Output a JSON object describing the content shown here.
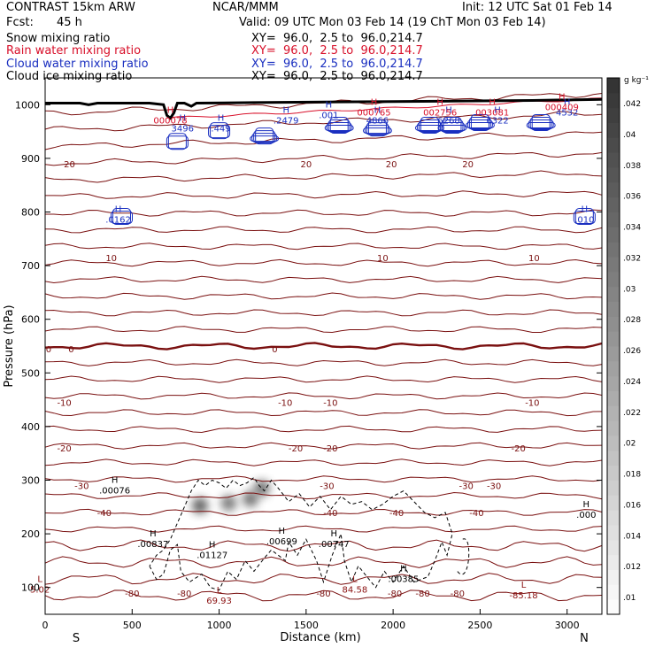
{
  "header": {
    "model": "CONTRAST 15km ARW",
    "org": "NCAR/MMM",
    "init": "Init: 12 UTC Sat 01 Feb 14",
    "fcst_label": "Fcst:",
    "fcst_value": "45 h",
    "valid": "Valid: 09 UTC Mon 03 Feb 14 (19 ChT Mon 03 Feb 14)",
    "fields": [
      {
        "label": "Snow mixing ratio",
        "xy": "XY=  96.0,  2.5 to  96.0,214.7",
        "color": "#000000"
      },
      {
        "label": "Rain water mixing ratio",
        "xy": "XY=  96.0,  2.5 to  96.0,214.7",
        "color": "#d8102a"
      },
      {
        "label": "Cloud water mixing ratio",
        "xy": "XY=  96.0,  2.5 to  96.0,214.7",
        "color": "#1a2fc0"
      },
      {
        "label": "Cloud ice mixing ratio",
        "xy": "XY=  96.0,  2.5 to  96.0,214.7",
        "color": "#000000"
      }
    ]
  },
  "chart_data": {
    "type": "cross-section",
    "xlabel": "Distance (km)",
    "ylabel": "Pressure (hPa)",
    "xlim": [
      0,
      3200
    ],
    "ylim": [
      1050,
      50
    ],
    "x_ticks": [
      0,
      500,
      1000,
      1500,
      2000,
      2500,
      3000
    ],
    "x_tick_labels": [
      "0",
      "500",
      "1000",
      "1500",
      "2000",
      "2500",
      "3000"
    ],
    "y_ticks": [
      100,
      200,
      300,
      400,
      500,
      600,
      700,
      800,
      900,
      1000
    ],
    "y_tick_labels": [
      "100",
      "200",
      "300",
      "400",
      "500",
      "600",
      "700",
      "800",
      "900",
      "1000"
    ],
    "end_labels": {
      "left": "S",
      "right": "N"
    },
    "colorbar": {
      "unit": "g kg⁻¹",
      "labels": [
        ".01",
        ".012",
        ".014",
        ".016",
        ".018",
        ".02",
        ".022",
        ".024",
        ".026",
        ".028",
        ".03",
        ".032",
        ".034",
        ".036",
        ".038",
        ".04",
        ".042"
      ]
    },
    "temperature_contours": [
      {
        "label": "-80",
        "p": 90,
        "label_x": [
          500,
          800,
          1600,
          2010,
          2170,
          2370
        ]
      },
      {
        "label": "-40",
        "p": 240,
        "label_x": [
          340,
          1640,
          2020,
          2480
        ]
      },
      {
        "label": "-30",
        "p": 290,
        "label_x": [
          210,
          1620,
          2420,
          2580
        ]
      },
      {
        "label": "-20",
        "p": 360,
        "label_x": [
          110,
          1440,
          1640,
          2720
        ]
      },
      {
        "label": "-10",
        "p": 445,
        "label_x": [
          110,
          1380,
          1640,
          2800
        ]
      },
      {
        "label": "0",
        "p": 545,
        "label_x": [
          20,
          150,
          1320
        ]
      },
      {
        "label": "10",
        "p": 715,
        "label_x": [
          380,
          1940,
          2810
        ]
      },
      {
        "label": "20",
        "p": 890,
        "label_x": [
          140,
          1500,
          1990,
          2430
        ]
      }
    ],
    "extrema": [
      {
        "type": "L",
        "value": "69.93",
        "x": 1000,
        "p": 80,
        "color": "#8a1010"
      },
      {
        "type": "L",
        "value": "84.58",
        "x": 1780,
        "p": 100,
        "color": "#8a1010"
      },
      {
        "type": "L",
        "value": "-85.18",
        "x": 2750,
        "p": 90,
        "color": "#8a1010"
      },
      {
        "type": "L",
        "value": "5.02",
        "x": -30,
        "p": 100,
        "color": "#8a1010"
      },
      {
        "type": "H",
        "value": ".00837",
        "x": 620,
        "p": 185,
        "color": "#000000"
      },
      {
        "type": "H",
        "value": ".01127",
        "x": 960,
        "p": 165,
        "color": "#000000"
      },
      {
        "type": "H",
        "value": ".00699",
        "x": 1360,
        "p": 190,
        "color": "#000000"
      },
      {
        "type": "H",
        "value": ".00747",
        "x": 1660,
        "p": 185,
        "color": "#000000"
      },
      {
        "type": "H",
        "value": ".00385",
        "x": 2060,
        "p": 120,
        "color": "#000000"
      },
      {
        "type": "H",
        "value": ".00076",
        "x": 400,
        "p": 285,
        "color": "#000000"
      },
      {
        "type": "H",
        "value": ".000",
        "x": 3110,
        "p": 240,
        "color": "#000000"
      },
      {
        "type": "H",
        "value": ".0162",
        "x": 420,
        "p": 790,
        "color": "#1a2fc0"
      },
      {
        "type": "H",
        "value": ".010",
        "x": 3100,
        "p": 790,
        "color": "#1a2fc0"
      },
      {
        "type": "H",
        "value": "3496",
        "x": 790,
        "p": 960,
        "color": "#1a2fc0"
      },
      {
        "type": "H",
        "value": ".449",
        "x": 1010,
        "p": 960,
        "color": "#1a2fc0"
      },
      {
        "type": "H",
        "value": ".2479",
        "x": 1385,
        "p": 975,
        "color": "#1a2fc0"
      },
      {
        "type": "H",
        "value": ".001",
        "x": 1630,
        "p": 985,
        "color": "#1a2fc0"
      },
      {
        "type": "H",
        "value": "4866",
        "x": 1910,
        "p": 975,
        "color": "#1a2fc0"
      },
      {
        "type": "H",
        "value": "6268",
        "x": 2320,
        "p": 975,
        "color": "#1a2fc0"
      },
      {
        "type": "H",
        "value": "6322",
        "x": 2600,
        "p": 975,
        "color": "#1a2fc0"
      },
      {
        "type": "H",
        "value": "4532",
        "x": 3000,
        "p": 990,
        "color": "#1a2fc0"
      },
      {
        "type": "H",
        "value": "000078",
        "x": 720,
        "p": 975,
        "color": "#d8102a"
      },
      {
        "type": "H",
        "value": "000765",
        "x": 1890,
        "p": 990,
        "color": "#d8102a"
      },
      {
        "type": "H",
        "value": "002756",
        "x": 2270,
        "p": 990,
        "color": "#d8102a"
      },
      {
        "type": "H",
        "value": "003081",
        "x": 2570,
        "p": 990,
        "color": "#d8102a"
      },
      {
        "type": "H",
        "value": "000409",
        "x": 2970,
        "p": 1000,
        "color": "#d8102a"
      }
    ],
    "snow_shading": [
      {
        "x": 890,
        "p_top": 215,
        "p_bot": 290,
        "intensity": 0.85
      },
      {
        "x": 1055,
        "p_top": 220,
        "p_bot": 295,
        "intensity": 0.65
      },
      {
        "x": 1180,
        "p_top": 225,
        "p_bot": 305,
        "intensity": 0.7
      },
      {
        "x": 1245,
        "p_top": 240,
        "p_bot": 330,
        "intensity": 0.75
      }
    ],
    "terrain": [
      [
        0,
        1003
      ],
      [
        200,
        1003
      ],
      [
        250,
        1000
      ],
      [
        300,
        1003
      ],
      [
        600,
        1003
      ],
      [
        680,
        1000
      ],
      [
        700,
        980
      ],
      [
        720,
        975
      ],
      [
        740,
        985
      ],
      [
        760,
        1003
      ],
      [
        800,
        1003
      ],
      [
        840,
        997
      ],
      [
        870,
        1003
      ],
      [
        1200,
        1004
      ],
      [
        1600,
        1005
      ],
      [
        2000,
        1006
      ],
      [
        2400,
        1007
      ],
      [
        2800,
        1008
      ],
      [
        3200,
        1010
      ]
    ]
  }
}
